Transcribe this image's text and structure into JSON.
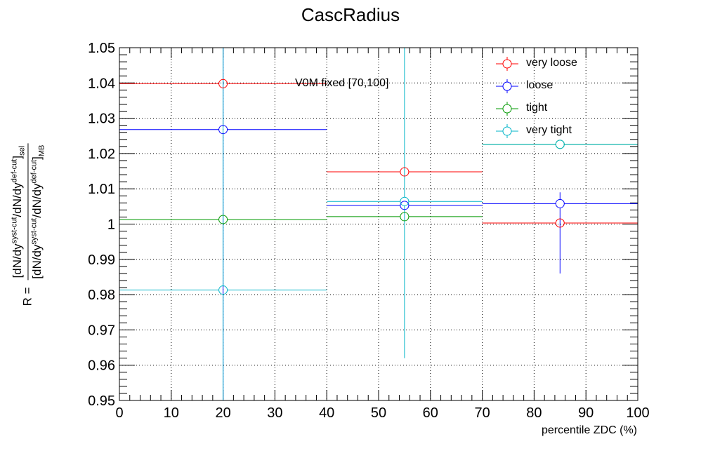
{
  "chart_data": {
    "type": "scatter",
    "title": "CascRadius",
    "xlabel": "percentile ZDC (%)",
    "ylabel": {
      "prefix": "R = ",
      "numerator": [
        "[dN/dy",
        "syst-cut",
        "/dN/dy",
        "def-cut",
        "]",
        "sel"
      ],
      "denominator": [
        "[dN/dy",
        "syst-cut",
        "/dN/dy",
        "def-cut",
        "]",
        "MB"
      ]
    },
    "annotation": "V0M fixed [70,100]",
    "xlim": [
      0,
      100
    ],
    "ylim": [
      0.95,
      1.05
    ],
    "x_ticks": [
      "0",
      "10",
      "20",
      "30",
      "40",
      "50",
      "60",
      "70",
      "80",
      "90",
      "100"
    ],
    "y_ticks": [
      "0.95",
      "0.96",
      "0.97",
      "0.98",
      "0.99",
      "1",
      "1.01",
      "1.02",
      "1.03",
      "1.04",
      "1.05"
    ],
    "grid": true,
    "legend_position": "top-right",
    "bins": [
      [
        0,
        40
      ],
      [
        40,
        70
      ],
      [
        70,
        100
      ]
    ],
    "series": [
      {
        "name": "very loose",
        "color": "#ff0000",
        "x": [
          20,
          55,
          85
        ],
        "y": [
          1.0398,
          1.0148,
          1.0003
        ],
        "yerr_low": [
          0,
          0,
          0
        ],
        "yerr_high": [
          0,
          0,
          0
        ]
      },
      {
        "name": "loose",
        "color": "#0000ff",
        "x": [
          20,
          55,
          85
        ],
        "y": [
          1.0268,
          1.0053,
          1.0058
        ],
        "yerr_low": [
          0.0768,
          0,
          0.0198
        ],
        "yerr_high": [
          0.0232,
          0,
          0.0032
        ]
      },
      {
        "name": "tight",
        "color": "#009900",
        "x": [
          20,
          55,
          85
        ],
        "y": [
          1.0013,
          1.0021,
          1.0226
        ],
        "yerr_low": [
          0,
          0,
          0
        ],
        "yerr_high": [
          0,
          0,
          0
        ]
      },
      {
        "name": "very tight",
        "color": "#00b4c8",
        "x": [
          20,
          55,
          85
        ],
        "y": [
          0.9813,
          1.0064,
          1.0226
        ],
        "yerr_low": [
          0.0313,
          0.0444,
          0
        ],
        "yerr_high": [
          0.0687,
          0.0436,
          0
        ]
      }
    ]
  }
}
